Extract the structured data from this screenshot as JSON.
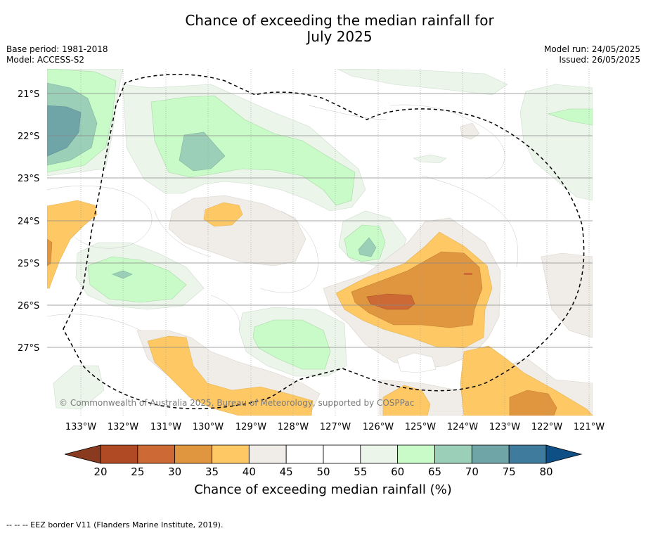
{
  "title": {
    "line1": "Chance of exceeding the median rainfall for",
    "line2": "July 2025"
  },
  "meta": {
    "base_period": "Base period: 1981-2018",
    "model": "Model: ACCESS-S2",
    "model_run": "Model run: 24/05/2025",
    "issued": "Issued: 26/05/2025"
  },
  "map": {
    "lat_labels": [
      "21°S",
      "22°S",
      "23°S",
      "24°S",
      "25°S",
      "26°S",
      "27°S"
    ],
    "lon_labels": [
      "133°W",
      "132°W",
      "131°W",
      "130°W",
      "129°W",
      "128°W",
      "127°W",
      "126°W",
      "125°W",
      "124°W",
      "123°W",
      "122°W",
      "121°W"
    ],
    "copyright": "© Commonwealth of Australia 2025, Bureau of Meteorology, supported by COSPPac"
  },
  "colorbar": {
    "ticks": [
      "20",
      "25",
      "30",
      "35",
      "40",
      "45",
      "50",
      "55",
      "60",
      "65",
      "70",
      "75",
      "80"
    ],
    "colors": [
      "#b04a25",
      "#cc6934",
      "#e0963f",
      "#fec965",
      "#f0ede8",
      "#ffffff",
      "#ffffff",
      "#ebf5ea",
      "#c9fbc8",
      "#9ccfb8",
      "#70a5a8",
      "#3e7b9c"
    ],
    "low_extend_color": "#8a3a1e",
    "high_extend_color": "#0e4f85",
    "label": "Chance of exceeding median rainfall (%)"
  },
  "footer": "-- -- -- EEZ border V11 (Flanders Marine Institute, 2019)."
}
